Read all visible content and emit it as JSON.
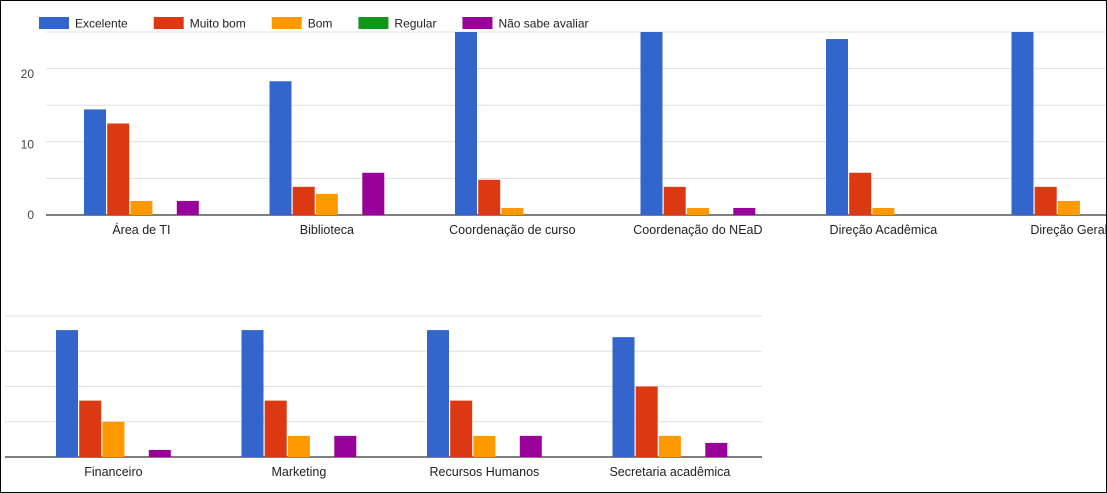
{
  "chart_data": [
    {
      "type": "bar",
      "title": "",
      "xlabel": "",
      "ylabel": "",
      "ylim": [
        0,
        26
      ],
      "yticks": [
        "0",
        "10",
        "20"
      ],
      "grid": true,
      "legend_position": "top-left",
      "legend_labels": [
        "Excelente",
        "Muito bom",
        "Bom",
        "Regular",
        "Não sabe avaliar"
      ],
      "colors": [
        "#3366cc",
        "#dc3912",
        "#ff9900",
        "#109618",
        "#990099"
      ],
      "categories": [
        "Área de TI",
        "Biblioteca",
        "Coordenação de curso",
        "Coordenação do NEaD",
        "Direção Acadêmica",
        "Direção Geral"
      ],
      "series": [
        {
          "name": "Excelente",
          "values": [
            15,
            19,
            26,
            26,
            25,
            26
          ]
        },
        {
          "name": "Muito bom",
          "values": [
            13,
            4,
            5,
            4,
            6,
            4
          ]
        },
        {
          "name": "Bom",
          "values": [
            2,
            3,
            1,
            1,
            1,
            2
          ]
        },
        {
          "name": "Regular",
          "values": [
            0,
            0,
            0,
            0,
            0,
            0
          ]
        },
        {
          "name": "Não sabe avaliar",
          "values": [
            2,
            6,
            0,
            1,
            0,
            0
          ]
        }
      ]
    },
    {
      "type": "bar",
      "title": "",
      "xlabel": "",
      "ylabel": "",
      "ylim": [
        0,
        40
      ],
      "grid": true,
      "categories": [
        "Financeiro",
        "Marketing",
        "Recursos Humanos",
        "Secretaria acadêmica"
      ],
      "series": [
        {
          "name": "Excelente",
          "values": [
            36,
            36,
            36,
            34
          ]
        },
        {
          "name": "Muito bom",
          "values": [
            16,
            16,
            16,
            20
          ]
        },
        {
          "name": "Bom",
          "values": [
            10,
            6,
            6,
            6
          ]
        },
        {
          "name": "Regular",
          "values": [
            0,
            0,
            0,
            0
          ]
        },
        {
          "name": "Não sabe avaliar",
          "values": [
            2,
            6,
            6,
            4
          ]
        }
      ]
    }
  ]
}
